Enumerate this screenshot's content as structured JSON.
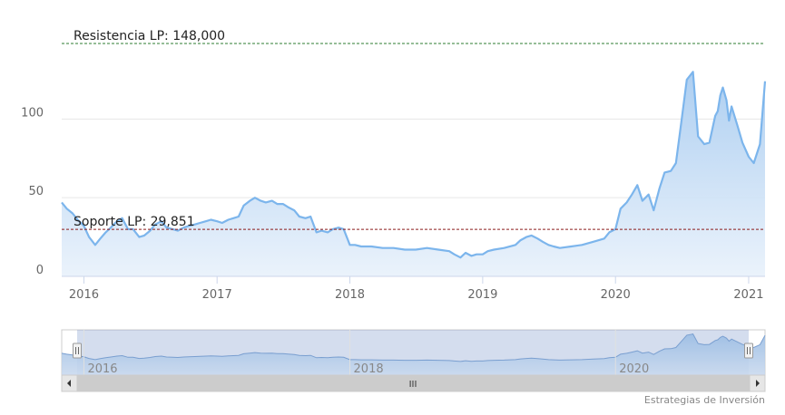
{
  "chart_data": {
    "type": "area",
    "title": "",
    "xlabel": "",
    "ylabel": "",
    "ylim": [
      0,
      148
    ],
    "xlim": [
      "2015-11-01",
      "2021-02-15"
    ],
    "y_ticks": [
      "0",
      "50",
      "100"
    ],
    "x_ticks": [
      {
        "date": "2016-01-01",
        "label": "2016"
      },
      {
        "date": "2017-01-01",
        "label": "2017"
      },
      {
        "date": "2018-01-01",
        "label": "2018"
      },
      {
        "date": "2019-01-01",
        "label": "2019"
      },
      {
        "date": "2020-01-01",
        "label": "2020"
      },
      {
        "date": "2021-01-01",
        "label": "2021"
      }
    ],
    "grid": true,
    "colors": {
      "line": "#7cb5ec",
      "fill_top": "#a9ccf0",
      "resistance": "#2e7d32",
      "support": "#8b1a1a"
    },
    "plot_lines": [
      {
        "name": "resistance",
        "value": 148,
        "label": "Resistencia LP: 148,000"
      },
      {
        "name": "support",
        "value": 29.851,
        "label": "Soporte LP: 29,851"
      }
    ],
    "series": [
      {
        "x": [
          "2015-11-01",
          "2015-11-15",
          "2015-12-01",
          "2015-12-15",
          "2016-01-01",
          "2016-01-15",
          "2016-02-01",
          "2016-02-15",
          "2016-03-01",
          "2016-03-15",
          "2016-04-01",
          "2016-04-15",
          "2016-05-01",
          "2016-05-15",
          "2016-06-01",
          "2016-06-15",
          "2016-07-01",
          "2016-07-15",
          "2016-08-01",
          "2016-08-15",
          "2016-09-01",
          "2016-09-15",
          "2016-10-01",
          "2016-10-15",
          "2016-11-01",
          "2016-11-15",
          "2016-12-01",
          "2016-12-15",
          "2017-01-01",
          "2017-01-15",
          "2017-02-01",
          "2017-02-15",
          "2017-03-01",
          "2017-03-15",
          "2017-04-01",
          "2017-04-15",
          "2017-05-01",
          "2017-05-15",
          "2017-06-01",
          "2017-06-15",
          "2017-07-01",
          "2017-07-15",
          "2017-08-01",
          "2017-08-15",
          "2017-09-01",
          "2017-09-15",
          "2017-10-01",
          "2017-10-15",
          "2017-11-01",
          "2017-11-15",
          "2017-12-01",
          "2017-12-15",
          "2018-01-01",
          "2018-01-15",
          "2018-02-01",
          "2018-03-01",
          "2018-04-01",
          "2018-05-01",
          "2018-06-01",
          "2018-07-01",
          "2018-08-01",
          "2018-09-01",
          "2018-10-01",
          "2018-10-15",
          "2018-11-01",
          "2018-11-15",
          "2018-12-01",
          "2018-12-15",
          "2019-01-01",
          "2019-01-15",
          "2019-02-01",
          "2019-03-01",
          "2019-04-01",
          "2019-04-15",
          "2019-05-01",
          "2019-05-15",
          "2019-06-01",
          "2019-06-15",
          "2019-07-01",
          "2019-07-15",
          "2019-08-01",
          "2019-09-01",
          "2019-10-01",
          "2019-11-01",
          "2019-12-01",
          "2019-12-15",
          "2020-01-01",
          "2020-01-15",
          "2020-02-01",
          "2020-02-15",
          "2020-03-01",
          "2020-03-15",
          "2020-04-01",
          "2020-04-15",
          "2020-05-01",
          "2020-05-15",
          "2020-06-01",
          "2020-06-15",
          "2020-07-01",
          "2020-07-15",
          "2020-08-01",
          "2020-08-15",
          "2020-09-01",
          "2020-09-15",
          "2020-10-01",
          "2020-10-08",
          "2020-10-15",
          "2020-10-22",
          "2020-11-01",
          "2020-11-08",
          "2020-11-15",
          "2020-12-01",
          "2020-12-15",
          "2021-01-01",
          "2021-01-15",
          "2021-02-01",
          "2021-02-15"
        ],
        "values": [
          47,
          43,
          40,
          36,
          32,
          25,
          20,
          24,
          28,
          31,
          35,
          37,
          30,
          30,
          25,
          26,
          29,
          33,
          35,
          31,
          30,
          29,
          31,
          32,
          33,
          34,
          35,
          36,
          35,
          34,
          36,
          37,
          38,
          45,
          48,
          50,
          48,
          47,
          48,
          46,
          46,
          44,
          42,
          38,
          37,
          38,
          28,
          29,
          28,
          30,
          31,
          30,
          20,
          20,
          19,
          19,
          18,
          18,
          17,
          17,
          18,
          17,
          16,
          14,
          12,
          15,
          13,
          14,
          14,
          16,
          17,
          18,
          20,
          23,
          25,
          26,
          24,
          22,
          20,
          19,
          18,
          19,
          20,
          22,
          24,
          28,
          30,
          43,
          47,
          52,
          58,
          48,
          52,
          42,
          56,
          66,
          67,
          72,
          100,
          125,
          130,
          89,
          84,
          85,
          102,
          105,
          115,
          120,
          112,
          99,
          108,
          96,
          85,
          76,
          72,
          84,
          124
        ]
      }
    ],
    "navigator": {
      "x_labels": [
        {
          "date": "2016-01-01",
          "label": "2016"
        },
        {
          "date": "2018-01-01",
          "label": "2018"
        },
        {
          "date": "2020-01-01",
          "label": "2020"
        }
      ],
      "scrollbar_grip": "III"
    },
    "credits": "Estrategias de Inversión"
  }
}
